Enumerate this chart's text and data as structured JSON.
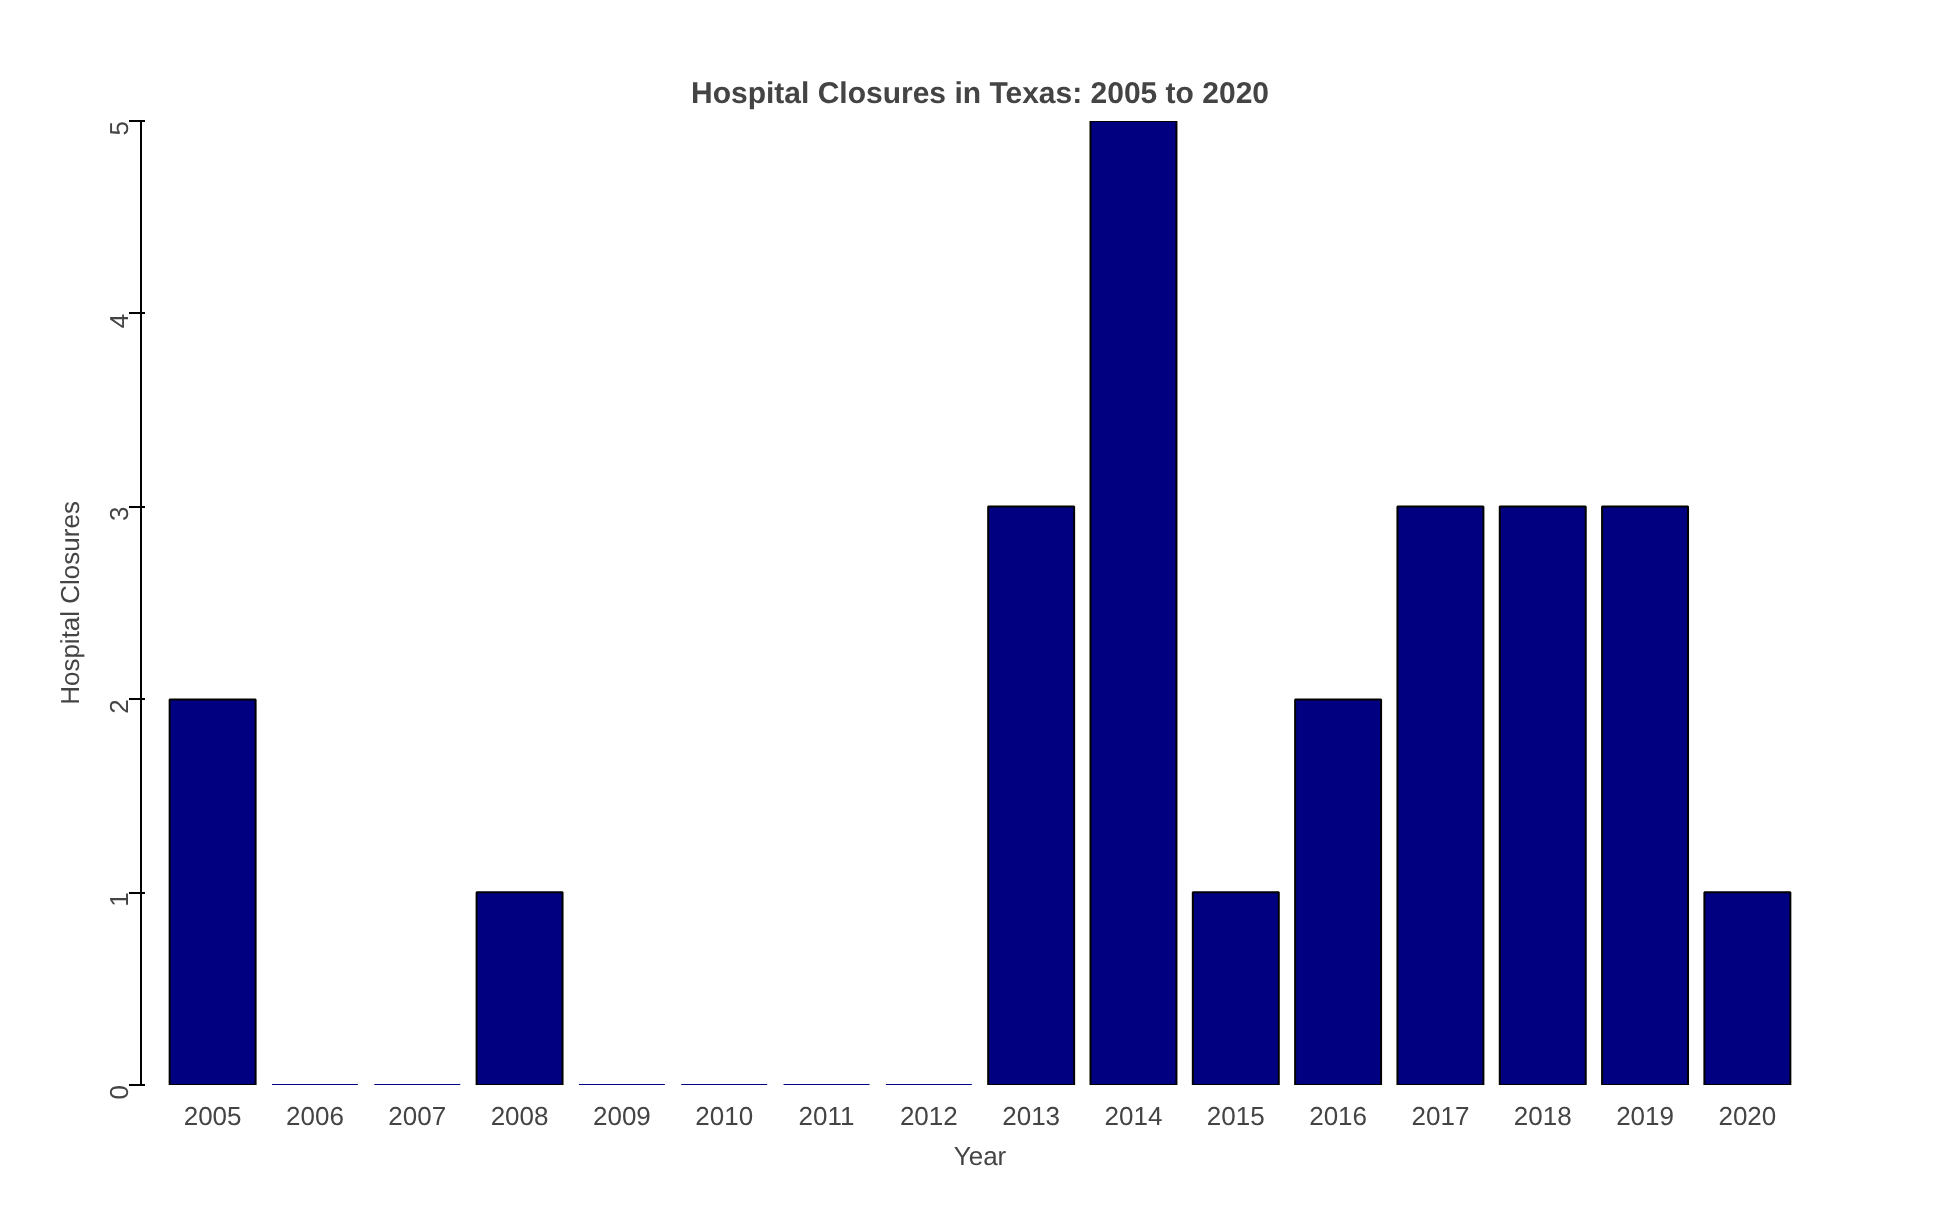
{
  "chart_data": {
    "type": "bar",
    "title": "Hospital Closures in Texas: 2005 to 2020",
    "xlabel": "Year",
    "ylabel": "Hospital Closures",
    "categories": [
      "2005",
      "2006",
      "2007",
      "2008",
      "2009",
      "2010",
      "2011",
      "2012",
      "2013",
      "2014",
      "2015",
      "2016",
      "2017",
      "2018",
      "2019",
      "2020"
    ],
    "values": [
      2,
      0,
      0,
      1,
      0,
      0,
      0,
      0,
      3,
      5,
      1,
      2,
      3,
      3,
      3,
      1
    ],
    "color": "#000080",
    "ylim": [
      0,
      5
    ],
    "yticks": [
      0,
      1,
      2,
      3,
      4,
      5
    ],
    "grid": false
  }
}
